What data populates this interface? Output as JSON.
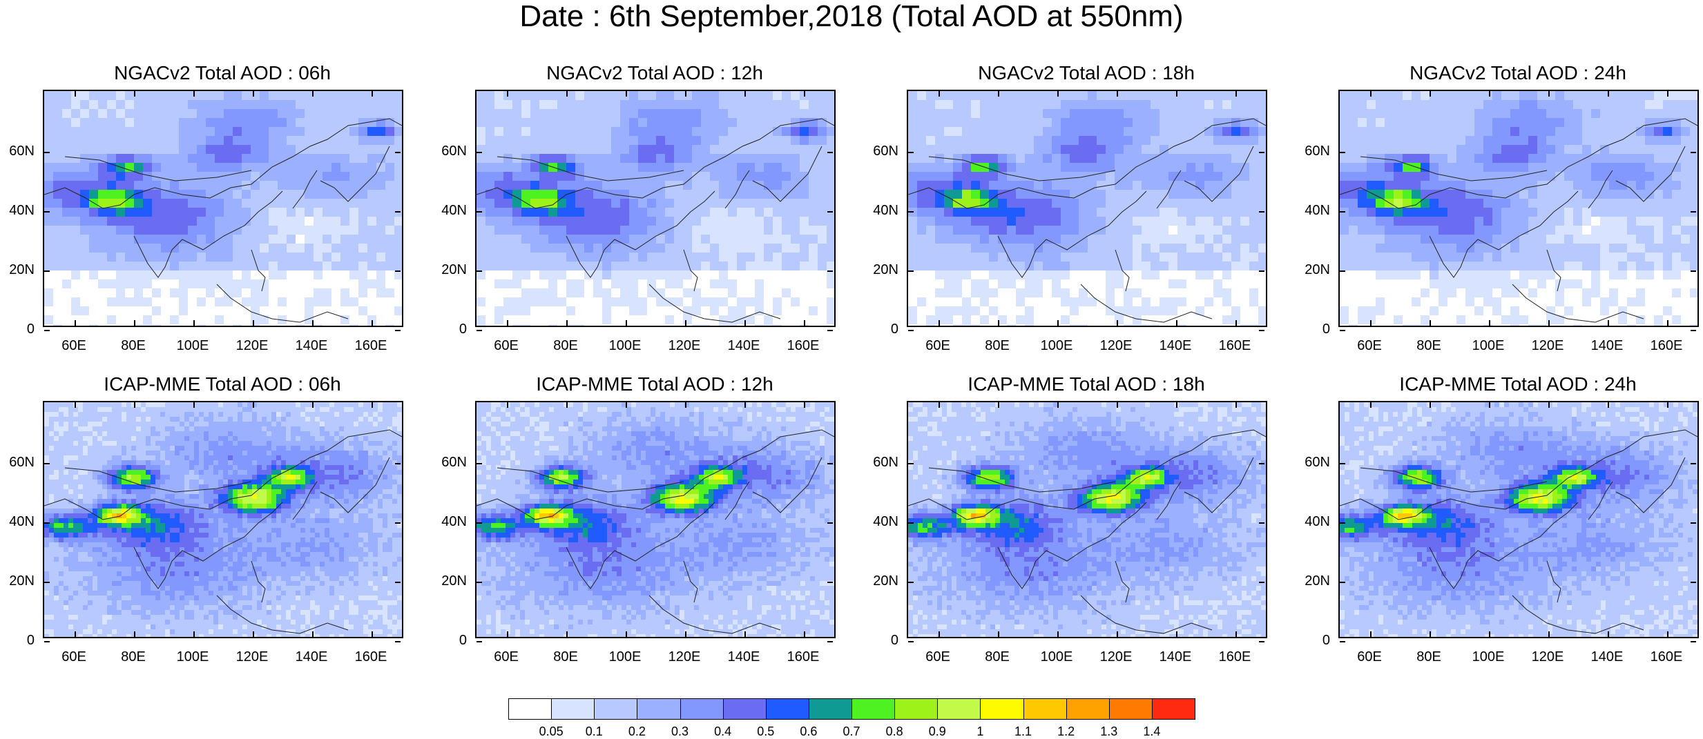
{
  "figure": {
    "title": "Date : 6th September,2018 (Total AOD at 550nm)"
  },
  "axes": {
    "lat_ticks": [
      "60N",
      "40N",
      "20N",
      "0"
    ],
    "lon_ticks": [
      "60E",
      "80E",
      "100E",
      "120E",
      "140E",
      "160E"
    ]
  },
  "panels": [
    {
      "title": "NGACv2 Total AOD : 06h"
    },
    {
      "title": "NGACv2 Total AOD : 12h"
    },
    {
      "title": "NGACv2 Total AOD : 18h"
    },
    {
      "title": "NGACv2 Total AOD : 24h"
    },
    {
      "title": "ICAP-MME Total AOD : 06h"
    },
    {
      "title": "ICAP-MME Total AOD : 12h"
    },
    {
      "title": "ICAP-MME Total AOD : 18h"
    },
    {
      "title": "ICAP-MME Total AOD : 24h"
    }
  ],
  "colorbar": {
    "labels": [
      "0.05",
      "0.1",
      "0.2",
      "0.3",
      "0.4",
      "0.5",
      "0.6",
      "0.7",
      "0.8",
      "0.9",
      "1",
      "1.1",
      "1.2",
      "1.3",
      "1.4"
    ],
    "colors": [
      "#ffffff",
      "#d7e3ff",
      "#b7c9ff",
      "#9bb0ff",
      "#8398ff",
      "#6a6cf2",
      "#1f5bff",
      "#0f9a93",
      "#4ef221",
      "#9cf219",
      "#c2fa4a",
      "#fefb00",
      "#ffc800",
      "#ffa200",
      "#ff7a00",
      "#ff2a10"
    ]
  }
}
